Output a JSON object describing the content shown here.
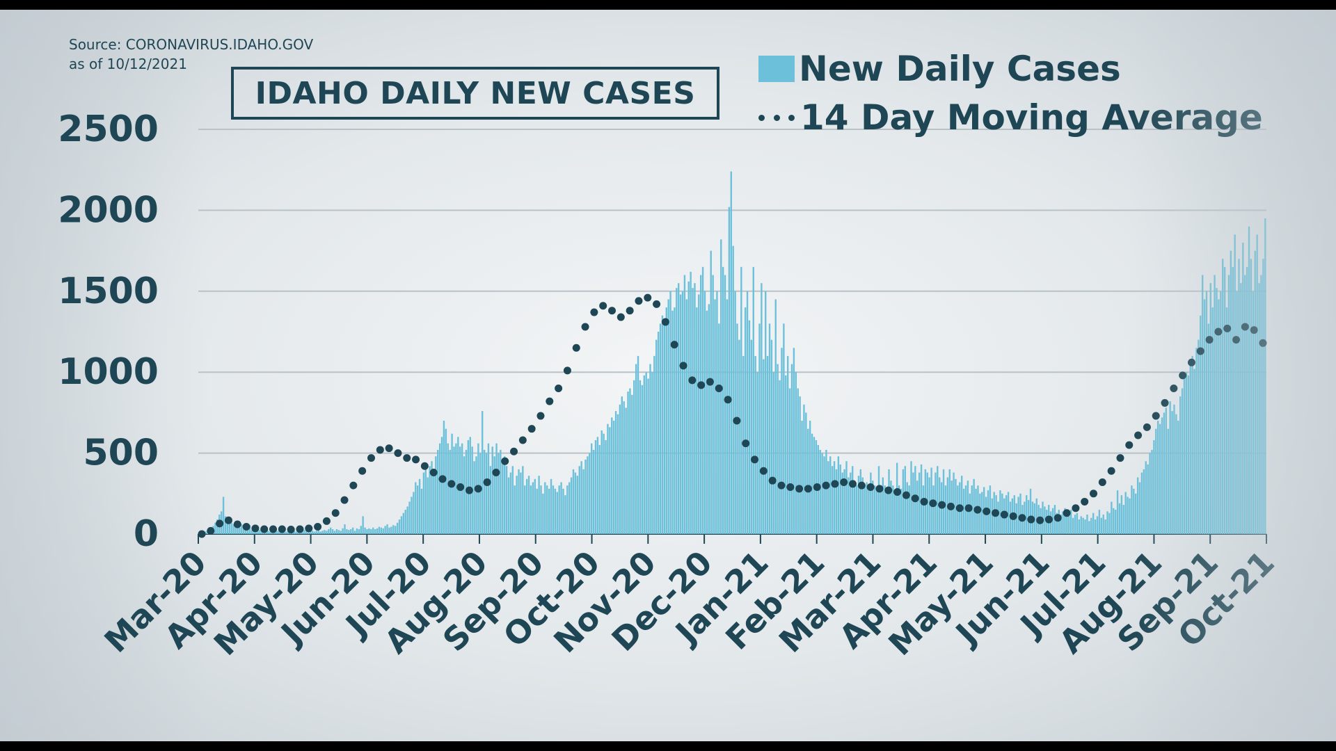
{
  "source_line1": "Source: CORONAVIRUS.IDAHO.GOV",
  "source_line2": "as of 10/12/2021",
  "legend": {
    "bars": "New Daily Cases",
    "line": "14 Day Moving Average"
  },
  "colors": {
    "bars": "#6cc0d9",
    "line": "#1f4654",
    "text": "#1f4654",
    "grid": "#b9c2c7"
  },
  "chart_data": {
    "type": "bar",
    "title": "IDAHO DAILY NEW CASES",
    "xlabel": "",
    "ylabel": "",
    "ylim": [
      0,
      2500
    ],
    "yticks": [
      0,
      500,
      1000,
      1500,
      2000,
      2500
    ],
    "grid": true,
    "legend_position": "top-right",
    "x_ticks": [
      "Mar-20",
      "Apr-20",
      "May-20",
      "Jun-20",
      "Jul-20",
      "Aug-20",
      "Sep-20",
      "Oct-20",
      "Nov-20",
      "Dec-20",
      "Jan-21",
      "Feb-21",
      "Mar-21",
      "Apr-21",
      "May-21",
      "Jun-21",
      "Jul-21",
      "Aug-21",
      "Sep-21",
      "Oct-21"
    ],
    "series": [
      {
        "name": "New Daily Cases",
        "type": "bar",
        "values": [
          0,
          5,
          10,
          15,
          20,
          30,
          40,
          50,
          70,
          90,
          120,
          140,
          230,
          110,
          90,
          80,
          70,
          60,
          50,
          45,
          40,
          60,
          35,
          30,
          30,
          55,
          25,
          20,
          30,
          50,
          25,
          20,
          15,
          40,
          20,
          15,
          20,
          30,
          25,
          20,
          20,
          30,
          20,
          15,
          20,
          25,
          20,
          20,
          15,
          30,
          20,
          15,
          25,
          20,
          20,
          30,
          20,
          15,
          20,
          25,
          15,
          20,
          25,
          20,
          30,
          40,
          30,
          20,
          30,
          25,
          20,
          35,
          60,
          30,
          25,
          30,
          40,
          20,
          35,
          30,
          50,
          110,
          40,
          30,
          35,
          30,
          40,
          30,
          35,
          45,
          40,
          35,
          50,
          60,
          40,
          45,
          55,
          50,
          70,
          90,
          110,
          130,
          150,
          170,
          200,
          230,
          260,
          320,
          300,
          340,
          280,
          380,
          400,
          350,
          420,
          450,
          400,
          480,
          520,
          560,
          600,
          700,
          650,
          560,
          520,
          620,
          540,
          560,
          600,
          540,
          560,
          480,
          520,
          580,
          600,
          540,
          450,
          480,
          560,
          500,
          760,
          520,
          500,
          560,
          420,
          540,
          480,
          560,
          500,
          520,
          450,
          480,
          420,
          350,
          380,
          420,
          300,
          360,
          400,
          380,
          420,
          300,
          340,
          360,
          300,
          320,
          340,
          280,
          360,
          300,
          250,
          320,
          300,
          280,
          340,
          300,
          280,
          260,
          300,
          320,
          280,
          240,
          300,
          320,
          350,
          400,
          380,
          360,
          420,
          450,
          400,
          460,
          480,
          500,
          560,
          520,
          580,
          600,
          550,
          640,
          620,
          580,
          680,
          660,
          720,
          700,
          760,
          740,
          800,
          850,
          820,
          780,
          880,
          900,
          860,
          950,
          1050,
          1100,
          950,
          920,
          980,
          1000,
          960,
          1050,
          1000,
          1100,
          1200,
          1250,
          1300,
          1350,
          1300,
          1400,
          1450,
          1500,
          1380,
          1400,
          1520,
          1550,
          1480,
          1500,
          1600,
          1450,
          1560,
          1620,
          1520,
          1550,
          1400,
          1480,
          1600,
          1650,
          1500,
          1380,
          1420,
          1750,
          1600,
          1450,
          1500,
          1300,
          1820,
          1650,
          1600,
          1450,
          2020,
          2240,
          1780,
          1500,
          1300,
          1200,
          1650,
          1100,
          1400,
          1500,
          1320,
          1200,
          1650,
          1100,
          1000,
          1300,
          1550,
          1080,
          1500,
          1100,
          1300,
          1200,
          1000,
          1450,
          1050,
          950,
          1150,
          1300,
          980,
          1100,
          900,
          1050,
          1150,
          1000,
          900,
          850,
          700,
          800,
          750,
          650,
          700,
          620,
          600,
          580,
          550,
          520,
          500,
          480,
          520,
          450,
          480,
          420,
          450,
          400,
          480,
          430,
          380,
          400,
          450,
          350,
          380,
          420,
          330,
          300,
          360,
          400,
          350,
          300,
          320,
          280,
          380,
          330,
          300,
          270,
          420,
          300,
          350,
          300,
          280,
          400,
          330,
          300,
          250,
          440,
          300,
          280,
          400,
          420,
          320,
          300,
          450,
          380,
          420,
          330,
          380,
          430,
          300,
          400,
          380,
          350,
          410,
          300,
          380,
          420,
          350,
          320,
          400,
          300,
          350,
          400,
          330,
          380,
          340,
          300,
          320,
          360,
          280,
          300,
          330,
          250,
          300,
          340,
          280,
          300,
          250,
          260,
          290,
          230,
          270,
          300,
          220,
          260,
          240,
          200,
          270,
          250,
          220,
          240,
          260,
          200,
          220,
          240,
          190,
          230,
          250,
          180,
          200,
          240,
          210,
          280,
          200,
          190,
          220,
          180,
          160,
          200,
          170,
          150,
          180,
          140,
          160,
          180,
          130,
          150,
          120,
          140,
          160,
          110,
          130,
          150,
          100,
          120,
          130,
          90,
          110,
          100,
          90,
          120,
          80,
          100,
          130,
          90,
          110,
          150,
          100,
          120,
          90,
          140,
          130,
          200,
          160,
          150,
          270,
          190,
          240,
          180,
          260,
          230,
          220,
          300,
          280,
          250,
          350,
          320,
          380,
          400,
          450,
          430,
          500,
          520,
          580,
          650,
          700,
          680,
          720,
          750,
          780,
          650,
          820,
          760,
          800,
          740,
          700,
          850,
          900,
          960,
          1000,
          980,
          1050,
          1100,
          1020,
          1150,
          1200,
          1350,
          1600,
          1450,
          1500,
          1300,
          1550,
          1400,
          1600,
          1520,
          1450,
          1500,
          1700,
          1650,
          1400,
          1600,
          1750,
          1650,
          1850,
          1500,
          1700,
          1550,
          1800,
          1600,
          1650,
          1900,
          1700,
          1500,
          1750,
          1850,
          1550,
          1600,
          1700,
          1950
        ]
      },
      {
        "name": "14 Day Moving Average",
        "type": "line",
        "values": [
          0,
          20,
          65,
          85,
          60,
          45,
          35,
          30,
          30,
          30,
          28,
          30,
          35,
          45,
          80,
          130,
          210,
          300,
          390,
          470,
          520,
          530,
          500,
          470,
          460,
          420,
          380,
          340,
          310,
          290,
          270,
          280,
          320,
          380,
          450,
          510,
          580,
          650,
          730,
          820,
          900,
          1010,
          1150,
          1280,
          1370,
          1410,
          1380,
          1340,
          1380,
          1440,
          1460,
          1420,
          1310,
          1170,
          1040,
          950,
          920,
          940,
          900,
          830,
          700,
          560,
          460,
          390,
          330,
          300,
          290,
          280,
          280,
          290,
          300,
          310,
          320,
          310,
          300,
          290,
          280,
          270,
          260,
          240,
          220,
          200,
          190,
          180,
          170,
          160,
          160,
          150,
          140,
          130,
          120,
          110,
          100,
          90,
          85,
          90,
          100,
          130,
          160,
          200,
          250,
          320,
          390,
          470,
          550,
          610,
          660,
          730,
          810,
          900,
          980,
          1060,
          1130,
          1200,
          1250,
          1270,
          1200,
          1280,
          1260,
          1180
        ]
      }
    ]
  }
}
